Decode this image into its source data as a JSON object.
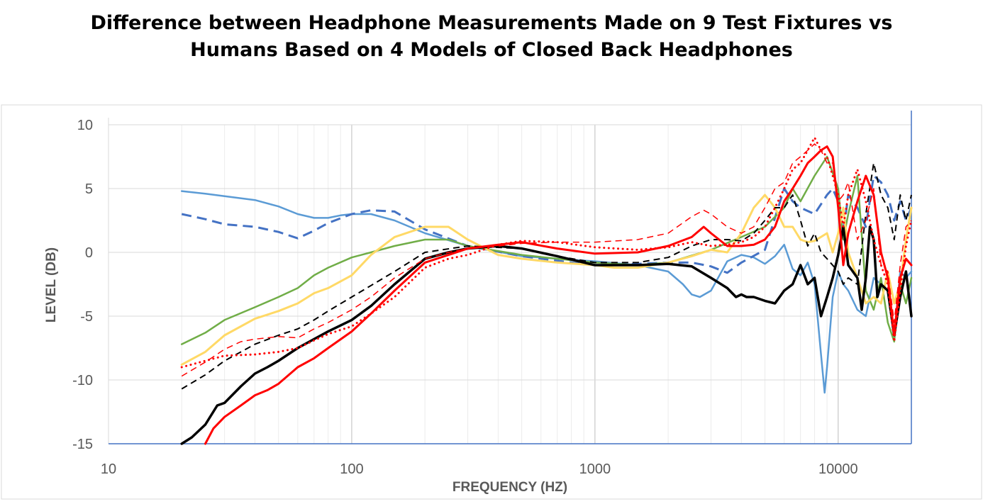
{
  "chart_data": {
    "type": "line",
    "title_lines": [
      "Difference between Headphone Measurements Made on 9 Test Fixtures vs",
      "Humans Based on 4 Models of Closed Back Headphones"
    ],
    "xlabel": "FREQUENCY (HZ)",
    "ylabel": "LEVEL (DB)",
    "x_scale": "log",
    "xlim": [
      10,
      20000
    ],
    "ylim": [
      -15,
      10
    ],
    "x_ticks": [
      10,
      100,
      1000,
      10000
    ],
    "x_tick_labels": [
      "10",
      "100",
      "1000",
      "10000"
    ],
    "y_ticks": [
      10,
      5,
      0,
      -5,
      -10,
      -15
    ],
    "y_tick_labels": [
      "10",
      "5",
      "0",
      "-5",
      "-10",
      "-15"
    ],
    "grid": true,
    "legend": "none",
    "series": [
      {
        "color": "#5b9bd5",
        "style": "solid",
        "width": 2.5,
        "x": [
          20,
          25,
          30,
          40,
          50,
          60,
          70,
          80,
          90,
          100,
          120,
          150,
          200,
          300,
          500,
          700,
          1000,
          1500,
          2000,
          2300,
          2500,
          2700,
          3000,
          3500,
          4000,
          4500,
          5000,
          5500,
          6000,
          6500,
          7000,
          7500,
          8000,
          8500,
          8800,
          9000,
          9500,
          10000,
          10500,
          11000,
          12000,
          13000,
          14000,
          15000,
          16000,
          17000,
          18000,
          19000,
          20000
        ],
        "y": [
          4.8,
          4.6,
          4.4,
          4.1,
          3.6,
          3.0,
          2.7,
          2.7,
          2.9,
          3.0,
          3.0,
          2.5,
          1.5,
          0.5,
          -0.3,
          -0.5,
          -0.7,
          -1.0,
          -1.5,
          -2.5,
          -3.3,
          -3.5,
          -3.0,
          -0.7,
          -0.2,
          -0.4,
          -0.9,
          -0.3,
          0.6,
          -1.3,
          -1.8,
          -0.8,
          -2.5,
          -8.0,
          -11.0,
          -9.0,
          -3.5,
          -1.5,
          -2.5,
          -3.0,
          -4.5,
          -5.0,
          -2.0,
          -2.5,
          -3.0,
          -6.5,
          -1.5,
          -2.0,
          -1.5
        ]
      },
      {
        "color": "#4472c4",
        "style": "dashed",
        "width": 3,
        "x": [
          20,
          25,
          30,
          40,
          50,
          60,
          70,
          80,
          100,
          120,
          150,
          200,
          300,
          500,
          800,
          1000,
          1500,
          2000,
          2500,
          3000,
          3500,
          4000,
          5000,
          6000,
          6500,
          7000,
          8000,
          9000,
          9500,
          10000,
          10500,
          11000,
          12000,
          13000,
          14000,
          15000,
          16000,
          17000,
          18000,
          19000,
          20000
        ],
        "y": [
          3.0,
          2.6,
          2.2,
          2.0,
          1.6,
          1.1,
          1.7,
          2.3,
          3.0,
          3.3,
          3.2,
          1.8,
          0.5,
          -0.3,
          -0.8,
          -1.0,
          -0.9,
          -0.8,
          -0.8,
          -1.1,
          -1.6,
          -0.8,
          0.2,
          5.0,
          4.0,
          3.5,
          3.0,
          4.5,
          5.0,
          4.0,
          1.5,
          4.5,
          3.5,
          2.0,
          6.0,
          5.5,
          4.5,
          2.5,
          4.0,
          2.5,
          3.5
        ]
      },
      {
        "color": "#70ad47",
        "style": "solid",
        "width": 2.5,
        "x": [
          20,
          25,
          30,
          40,
          50,
          60,
          70,
          80,
          100,
          120,
          150,
          200,
          250,
          300,
          500,
          700,
          1000,
          1500,
          2000,
          3000,
          4000,
          5000,
          6000,
          6500,
          7000,
          8000,
          9000,
          10000,
          10500,
          11000,
          12000,
          13000,
          14000,
          15000,
          16000,
          17000,
          18000,
          19000,
          20000
        ],
        "y": [
          -7.2,
          -6.3,
          -5.3,
          -4.3,
          -3.5,
          -2.8,
          -1.8,
          -1.2,
          -0.4,
          0.0,
          0.5,
          1.0,
          1.0,
          0.5,
          -0.2,
          -0.5,
          -0.8,
          -1.0,
          -0.8,
          0.2,
          1.2,
          2.0,
          3.5,
          5.0,
          4.0,
          6.0,
          7.5,
          5.0,
          1.0,
          3.0,
          6.0,
          -3.0,
          -4.5,
          -2.0,
          -5.5,
          -7.0,
          -2.5,
          -4.0,
          -2.0
        ]
      },
      {
        "color": "#ffd966",
        "style": "solid",
        "width": 3,
        "x": [
          20,
          25,
          30,
          40,
          50,
          60,
          70,
          80,
          100,
          120,
          150,
          200,
          250,
          300,
          400,
          500,
          700,
          1000,
          1200,
          1500,
          2000,
          2500,
          3000,
          3500,
          4000,
          4500,
          5000,
          5500,
          6000,
          6500,
          7000,
          7500,
          8000,
          9000,
          9500,
          10000,
          10500,
          11000,
          12000,
          13000,
          14000,
          15000,
          16000,
          17000,
          18000,
          19000,
          20000
        ],
        "y": [
          -8.8,
          -7.8,
          -6.5,
          -5.2,
          -4.6,
          -4.0,
          -3.2,
          -2.8,
          -1.8,
          -0.2,
          1.2,
          2.0,
          2.0,
          1.0,
          -0.2,
          -0.5,
          -0.8,
          -1.0,
          -1.2,
          -1.2,
          -0.8,
          -0.3,
          0.2,
          0.0,
          1.5,
          3.5,
          4.5,
          3.5,
          2.0,
          2.0,
          1.0,
          0.8,
          0.9,
          1.5,
          0.0,
          1.5,
          3.5,
          0.0,
          -2.0,
          -4.0,
          -3.5,
          -4.0,
          -1.5,
          -4.0,
          -2.5,
          1.0,
          3.5
        ]
      },
      {
        "color": "#000000",
        "style": "dashed",
        "width": 2,
        "x": [
          20,
          25,
          30,
          40,
          50,
          60,
          70,
          80,
          100,
          120,
          150,
          200,
          300,
          500,
          700,
          1000,
          1500,
          2000,
          2500,
          3000,
          3500,
          4000,
          4500,
          5000,
          5500,
          6000,
          6500,
          7000,
          7500,
          8000,
          8500,
          9000,
          10000,
          10500,
          11000,
          12000,
          13000,
          14000,
          15000,
          16000,
          17000,
          18000,
          19000,
          20000
        ],
        "y": [
          -10.7,
          -9.6,
          -8.5,
          -7.2,
          -6.5,
          -6.0,
          -5.3,
          -4.6,
          -3.5,
          -2.6,
          -1.5,
          0.0,
          0.5,
          0.3,
          -0.3,
          -0.8,
          -0.8,
          -0.4,
          0.5,
          1.0,
          1.0,
          0.9,
          1.5,
          2.5,
          3.5,
          3.5,
          4.5,
          2.5,
          0.5,
          1.5,
          0.0,
          -0.5,
          -1.5,
          -2.5,
          -2.0,
          -2.5,
          3.0,
          7.0,
          4.5,
          3.5,
          1.0,
          4.5,
          2.5,
          4.5
        ]
      },
      {
        "color": "#000000",
        "style": "solid",
        "width": 3.5,
        "x": [
          20,
          22,
          25,
          28,
          30,
          35,
          40,
          45,
          50,
          60,
          70,
          80,
          100,
          120,
          150,
          200,
          250,
          300,
          400,
          500,
          700,
          1000,
          1500,
          2000,
          2500,
          3000,
          3500,
          3800,
          4000,
          4200,
          4500,
          5000,
          5500,
          6000,
          6500,
          7000,
          7500,
          8000,
          8500,
          9000,
          9500,
          10000,
          10500,
          11000,
          12000,
          12500,
          13000,
          13500,
          14000,
          14500,
          15000,
          16000,
          17000,
          18000,
          19000,
          20000
        ],
        "y": [
          -15.0,
          -14.5,
          -13.5,
          -12.0,
          -11.8,
          -10.5,
          -9.5,
          -9.0,
          -8.5,
          -7.5,
          -6.8,
          -6.2,
          -5.3,
          -4.2,
          -2.5,
          -0.5,
          0.0,
          0.3,
          0.5,
          0.3,
          -0.3,
          -1.0,
          -1.0,
          -0.9,
          -1.1,
          -2.0,
          -2.8,
          -3.5,
          -3.3,
          -3.5,
          -3.5,
          -3.8,
          -4.0,
          -3.0,
          -2.5,
          -1.0,
          -2.5,
          -2.0,
          -5.0,
          -3.5,
          -2.0,
          -0.2,
          2.0,
          -1.0,
          -2.0,
          -4.5,
          -2.0,
          2.0,
          1.0,
          -3.5,
          -2.5,
          -3.0,
          -6.5,
          -3.5,
          -1.5,
          -5.0
        ]
      },
      {
        "color": "#ff0000",
        "style": "solid",
        "width": 3,
        "x": [
          25,
          27,
          30,
          35,
          40,
          45,
          50,
          60,
          70,
          80,
          100,
          120,
          150,
          200,
          250,
          300,
          400,
          500,
          700,
          1000,
          1500,
          2000,
          2500,
          2800,
          3000,
          3500,
          4000,
          4500,
          5000,
          5500,
          6000,
          6500,
          7000,
          7500,
          8000,
          8500,
          9000,
          9500,
          10000,
          10500,
          11000,
          12000,
          13000,
          14000,
          15000,
          16000,
          17000,
          18000,
          19000,
          20000
        ],
        "y": [
          -15.0,
          -13.8,
          -12.9,
          -12.0,
          -11.2,
          -10.8,
          -10.3,
          -9.0,
          -8.3,
          -7.5,
          -6.2,
          -4.8,
          -3.0,
          -0.8,
          -0.2,
          0.3,
          0.6,
          0.8,
          0.3,
          -0.1,
          0.0,
          0.5,
          1.2,
          2.0,
          1.5,
          0.5,
          0.5,
          0.6,
          1.0,
          2.0,
          4.0,
          5.0,
          6.0,
          7.0,
          7.5,
          8.0,
          8.3,
          7.5,
          3.5,
          -1.0,
          1.5,
          4.0,
          6.0,
          4.5,
          0.0,
          -2.0,
          -6.5,
          -2.0,
          -0.5,
          -1.0
        ]
      },
      {
        "color": "#ff0000",
        "style": "dashed",
        "width": 1.5,
        "x": [
          20,
          25,
          30,
          35,
          40,
          50,
          60,
          70,
          80,
          100,
          120,
          150,
          200,
          250,
          300,
          400,
          500,
          700,
          1000,
          1500,
          2000,
          2500,
          2800,
          3000,
          3500,
          4000,
          4500,
          5000,
          5500,
          6000,
          6500,
          7000,
          7500,
          8000,
          8500,
          9000,
          9500,
          10000,
          10500,
          11000,
          12000,
          13000,
          14000,
          15000,
          16000,
          17000,
          18000,
          19000,
          20000
        ],
        "y": [
          -9.7,
          -8.6,
          -7.6,
          -7.0,
          -6.8,
          -6.6,
          -6.7,
          -6.0,
          -5.5,
          -4.5,
          -3.5,
          -2.0,
          -0.5,
          0.0,
          0.3,
          0.5,
          0.7,
          0.8,
          0.8,
          1.0,
          1.5,
          2.8,
          3.3,
          3.0,
          2.0,
          1.5,
          2.0,
          3.5,
          5.0,
          5.5,
          7.0,
          7.5,
          8.0,
          8.5,
          8.0,
          7.0,
          7.0,
          4.0,
          4.5,
          5.5,
          1.0,
          2.5,
          5.0,
          -1.0,
          -1.5,
          -5.5,
          -1.0,
          2.0,
          2.5
        ]
      },
      {
        "color": "#ff0000",
        "style": "dotted",
        "width": 3,
        "x": [
          20,
          25,
          30,
          40,
          50,
          60,
          70,
          80,
          100,
          120,
          150,
          200,
          250,
          300,
          400,
          500,
          700,
          1000,
          1500,
          2000,
          2500,
          3000,
          3500,
          4000,
          4500,
          5000,
          5500,
          6000,
          6500,
          7000,
          7500,
          8000,
          8500,
          9000,
          9500,
          10000,
          10500,
          11000,
          12000,
          13000,
          14000,
          15000,
          16000,
          17000,
          18000,
          19000,
          20000
        ],
        "y": [
          -9.0,
          -8.5,
          -8.1,
          -8.0,
          -7.8,
          -7.5,
          -6.9,
          -6.4,
          -5.8,
          -4.8,
          -3.5,
          -1.2,
          -0.5,
          -0.2,
          0.6,
          0.9,
          0.8,
          0.4,
          0.2,
          0.4,
          0.8,
          0.5,
          0.6,
          0.8,
          1.2,
          2.0,
          3.5,
          5.0,
          6.5,
          7.0,
          8.0,
          9.0,
          8.0,
          7.5,
          6.0,
          4.5,
          2.0,
          4.5,
          6.5,
          4.0,
          1.0,
          -1.0,
          -2.5,
          -7.0,
          -3.0,
          0.5,
          2.5
        ]
      }
    ]
  }
}
